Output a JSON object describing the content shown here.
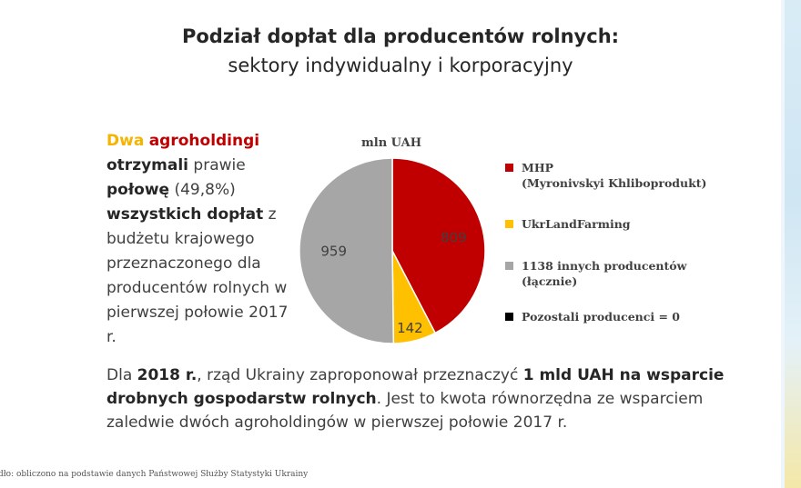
{
  "title": "Podział dopłat dla producentów rolnych:",
  "subtitle": "sektory indywidualny i korporacyjny",
  "left_text": {
    "w1": "Dwa",
    "w2": "agroholdingi",
    "w3": "otrzymali",
    "w4": "prawie",
    "w5": "połowę",
    "w6": "(49,8%)",
    "w7": "wszystkich dopłat",
    "w8": "z budżetu krajowego przeznaczonego dla producentów rolnych w pierwszej połowie 2017 r."
  },
  "bottom_text": {
    "p1": "Dla ",
    "p2": "2018 r.",
    "p3": ", rząd Ukrainy zaproponował przeznaczyć ",
    "p4": "1 mld UAH na wsparcie drobnych gospodarstw rolnych",
    "p5": ". Jest to kwota równorzędna ze wsparciem zaledwie dwóch agroholdingów w pierwszej połowie 2017 r."
  },
  "source": "dło: obliczono na podstawie danych Państwowej Służby Statystyki Ukrainy",
  "chart_data": {
    "type": "pie",
    "unit_label": "mln UAH",
    "slices": [
      {
        "name": "MHP (Myronivskyi Khliboprodukt)",
        "value": 809,
        "label": "809",
        "color": "#c00000"
      },
      {
        "name": "UkrLandFarming",
        "value": 142,
        "label": "142",
        "color": "#ffc000"
      },
      {
        "name": "1138 innych producentów (łącznie)",
        "value": 959,
        "label": "959",
        "color": "#a6a6a6"
      },
      {
        "name": "Pozostali producenci = 0",
        "value": 0,
        "label": "",
        "color": "#000000"
      }
    ],
    "legend": [
      {
        "line1": "MHP",
        "line2": "(Myronivskyi Khliboprodukt)",
        "color": "#c00000"
      },
      {
        "line1": "UkrLandFarming",
        "line2": "",
        "color": "#ffc000"
      },
      {
        "line1": "1138 innych producentów",
        "line2": "(łącznie)",
        "color": "#a6a6a6"
      },
      {
        "line1": "Pozostali producenci = 0",
        "line2": "",
        "color": "#000000"
      }
    ],
    "legend_position": "right"
  }
}
